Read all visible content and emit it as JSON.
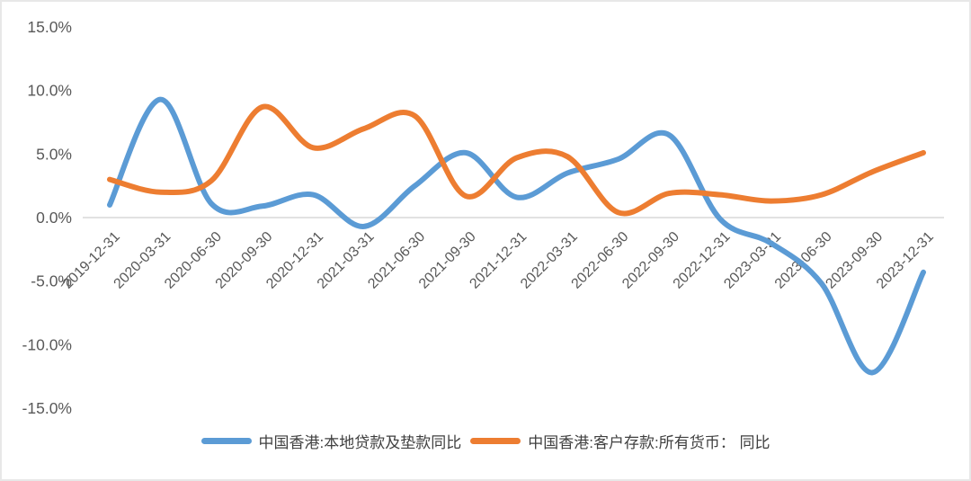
{
  "chart_data": {
    "type": "line",
    "title": "",
    "xlabel": "",
    "ylabel": "",
    "categories": [
      "2019-12-31",
      "2020-03-31",
      "2020-06-30",
      "2020-09-30",
      "2020-12-31",
      "2021-03-31",
      "2021-06-30",
      "2021-09-30",
      "2021-12-31",
      "2022-03-31",
      "2022-06-30",
      "2022-09-30",
      "2022-12-31",
      "2023-03-31",
      "2023-06-30",
      "2023-09-30",
      "2023-12-31"
    ],
    "series": [
      {
        "name": "中国香港:本地贷款及垫款同比",
        "color": "#5B9BD5",
        "values": [
          1.0,
          9.3,
          1.1,
          0.9,
          1.8,
          -0.7,
          2.5,
          5.1,
          1.6,
          3.5,
          4.6,
          6.5,
          -0.1,
          -2.0,
          -5.2,
          -12.2,
          -4.3
        ]
      },
      {
        "name": "中国香港:客户存款:所有货币： 同比",
        "color": "#ED7D31",
        "values": [
          3.0,
          2.0,
          2.9,
          8.7,
          5.5,
          7.0,
          8.0,
          1.7,
          4.7,
          4.8,
          0.4,
          1.9,
          1.8,
          1.3,
          1.8,
          3.6,
          5.1
        ]
      }
    ],
    "ylim": [
      -15,
      15
    ],
    "yticks": [
      {
        "value": 15,
        "label": "15.0%"
      },
      {
        "value": 10,
        "label": "10.0%"
      },
      {
        "value": 5,
        "label": "5.0%"
      },
      {
        "value": 0,
        "label": "0.0%"
      },
      {
        "value": -5,
        "label": "-5.0%"
      },
      {
        "value": -10,
        "label": "-10.0%"
      },
      {
        "value": -15,
        "label": "-15.0%"
      }
    ],
    "grid": "zero-line-only",
    "legend_position": "bottom",
    "line_smoothing": true,
    "axis_text_color": "#595959",
    "gridline_color": "#d9d9d9"
  }
}
